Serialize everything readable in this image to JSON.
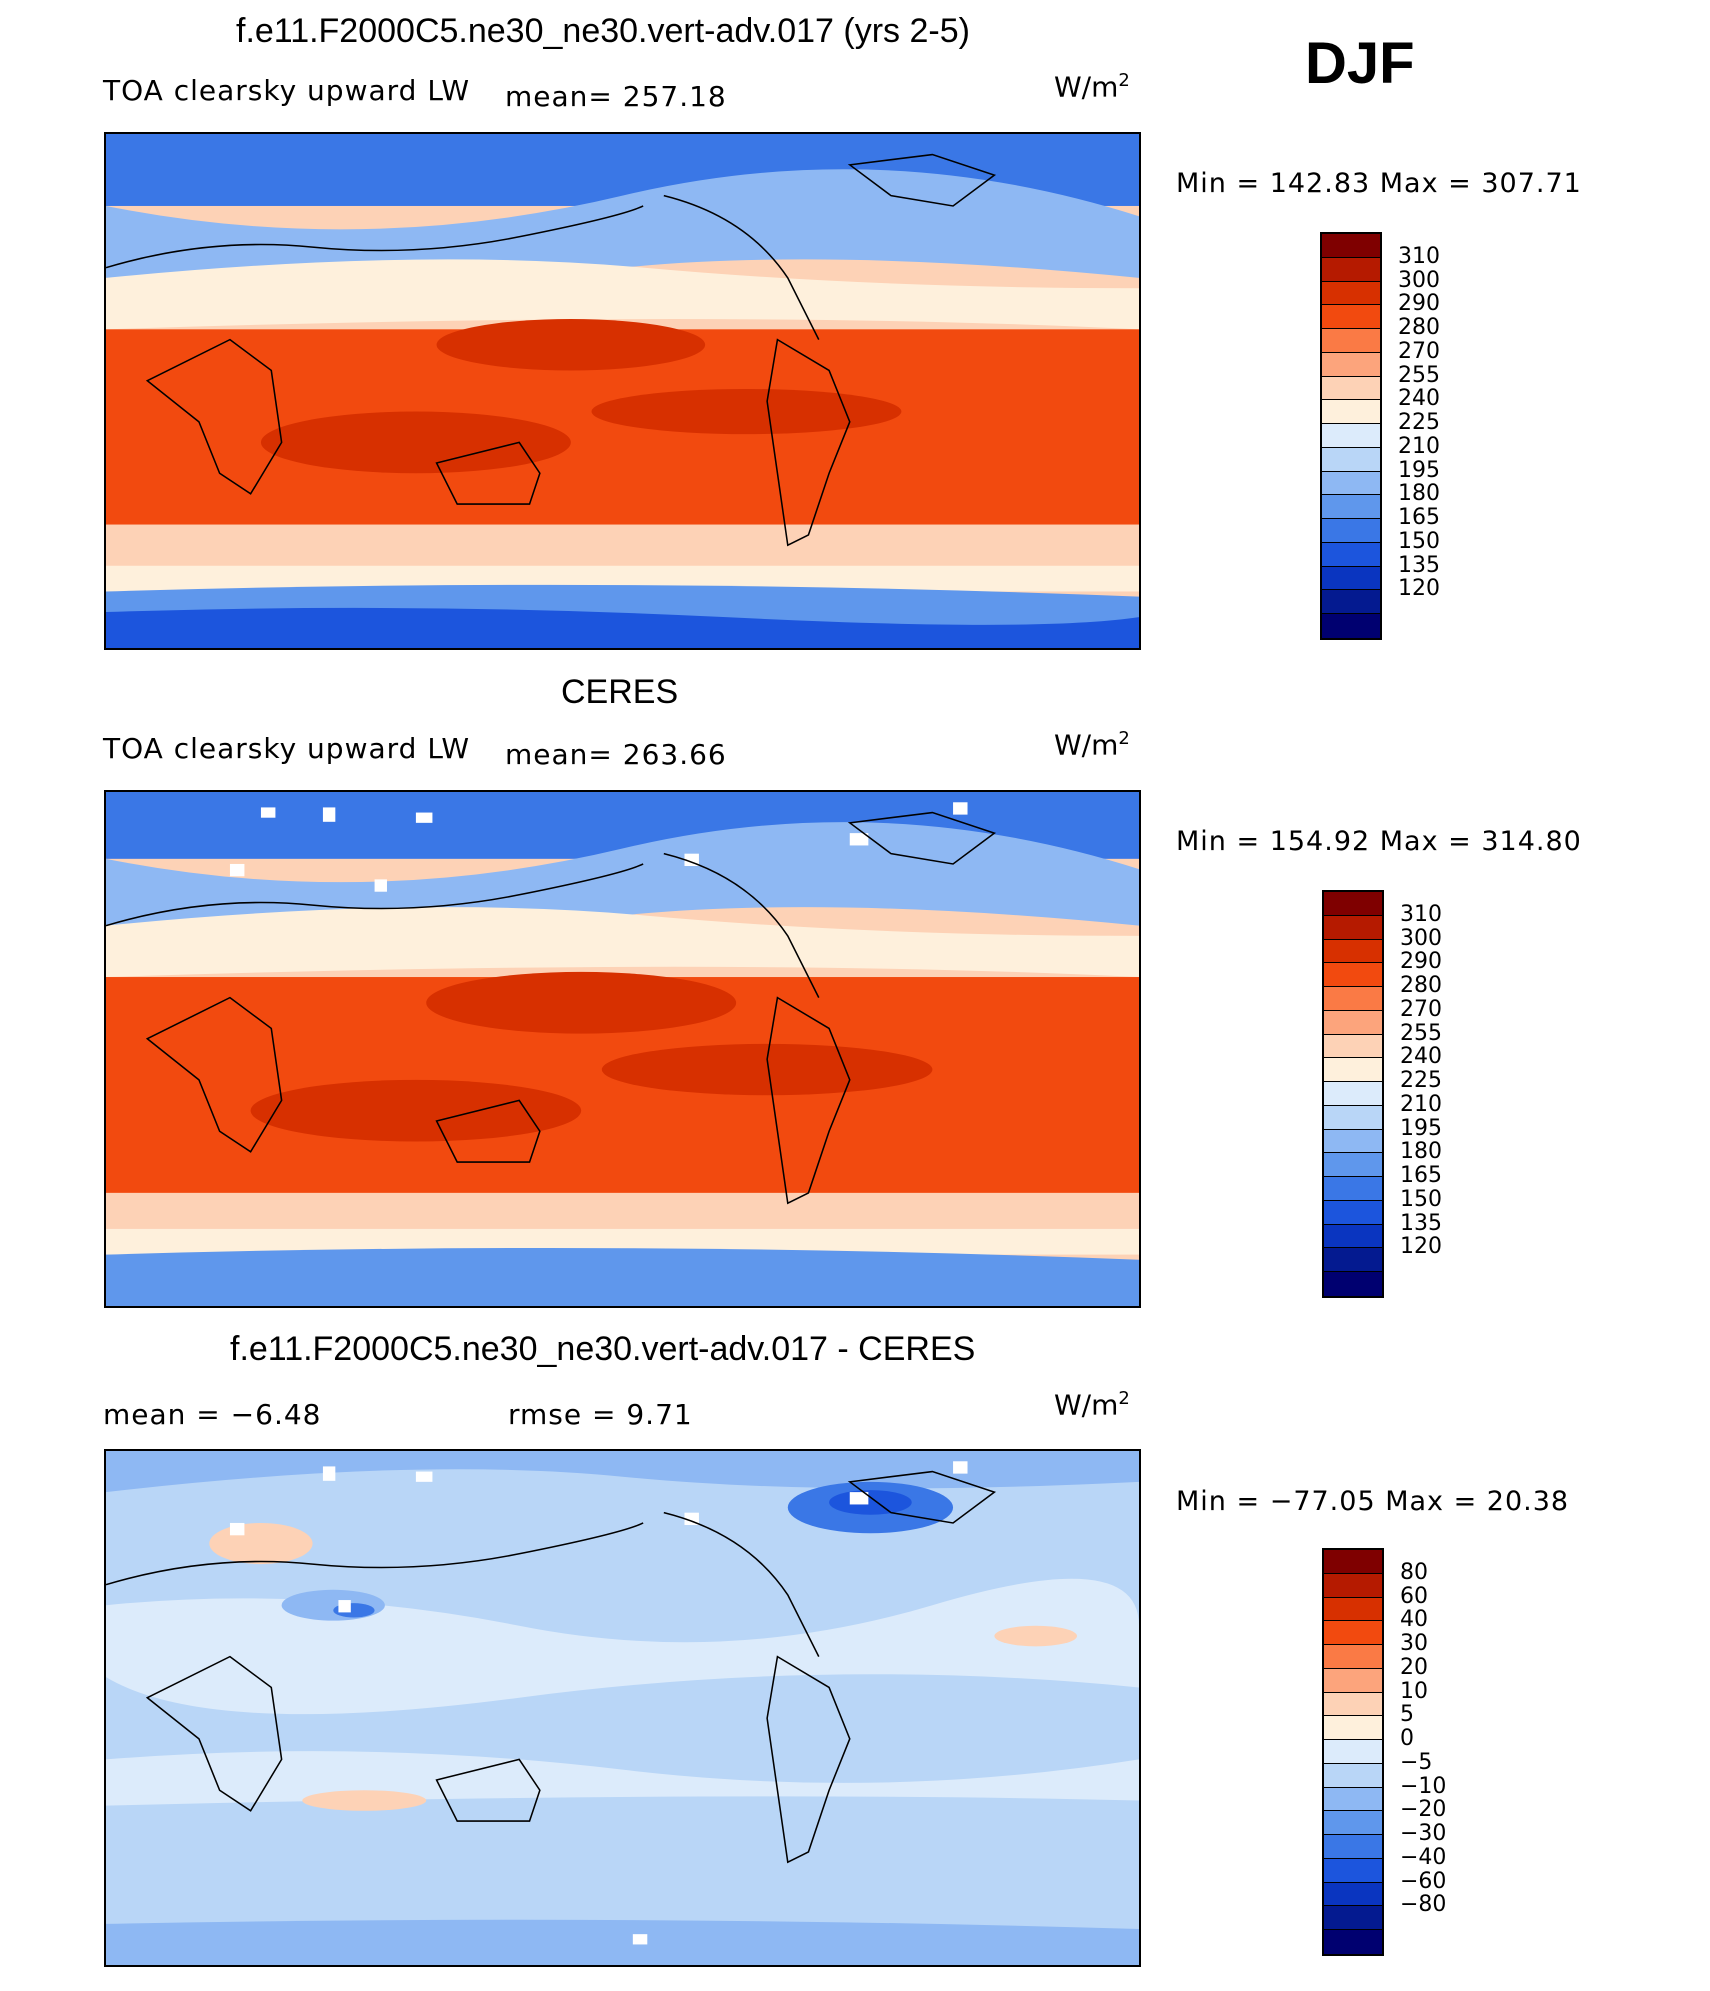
{
  "header": {
    "season": "DJF"
  },
  "panels": [
    {
      "id": "model",
      "title": "f.e11.F2000C5.ne30_ne30.vert-adv.017 (yrs 2-5)",
      "left_label": "TOA clearsky upward LW",
      "center_label": "mean= 257.18",
      "units": "W/m",
      "units_sup": "2",
      "minmax": "Min  =  142.83  Max  =  307.71",
      "colorbar": {
        "colors": [
          "#7f0000",
          "#b51a00",
          "#d73000",
          "#f24a0f",
          "#fa7a45",
          "#fca47c",
          "#fdd2b6",
          "#fef0dc",
          "#dcebfb",
          "#b9d6f7",
          "#8eb8f3",
          "#5f97ec",
          "#3a77e6",
          "#1c55dd",
          "#0a35c0",
          "#041a90",
          "#000070"
        ],
        "ticks": [
          "310",
          "300",
          "290",
          "280",
          "270",
          "255",
          "240",
          "225",
          "210",
          "195",
          "180",
          "165",
          "150",
          "135",
          "120"
        ]
      }
    },
    {
      "id": "obs",
      "title": "CERES",
      "left_label": "TOA clearsky upward LW",
      "center_label": "mean= 263.66",
      "units": "W/m",
      "units_sup": "2",
      "minmax": "Min  =  154.92  Max  =  314.80",
      "colorbar": {
        "colors": [
          "#7f0000",
          "#b51a00",
          "#d73000",
          "#f24a0f",
          "#fa7a45",
          "#fca47c",
          "#fdd2b6",
          "#fef0dc",
          "#dcebfb",
          "#b9d6f7",
          "#8eb8f3",
          "#5f97ec",
          "#3a77e6",
          "#1c55dd",
          "#0a35c0",
          "#041a90",
          "#000070"
        ],
        "ticks": [
          "310",
          "300",
          "290",
          "280",
          "270",
          "255",
          "240",
          "225",
          "210",
          "195",
          "180",
          "165",
          "150",
          "135",
          "120"
        ]
      }
    },
    {
      "id": "diff",
      "title": "f.e11.F2000C5.ne30_ne30.vert-adv.017 - CERES",
      "left_label": "mean =    −6.48",
      "center_label": "rmse =     9.71",
      "units": "W/m",
      "units_sup": "2",
      "minmax": "Min  =  −77.05  Max  =    20.38",
      "colorbar": {
        "colors": [
          "#7f0000",
          "#b51a00",
          "#d73000",
          "#f24a0f",
          "#fa7a45",
          "#fca47c",
          "#fdd2b6",
          "#fef0dc",
          "#dcebfb",
          "#b9d6f7",
          "#8eb8f3",
          "#5f97ec",
          "#3a77e6",
          "#1c55dd",
          "#0a35c0",
          "#041a90",
          "#000070"
        ],
        "ticks": [
          "80",
          "60",
          "40",
          "30",
          "20",
          "10",
          "5",
          "0",
          "−5",
          "−10",
          "−20",
          "−30",
          "−40",
          "−60",
          "−80"
        ]
      }
    }
  ]
}
